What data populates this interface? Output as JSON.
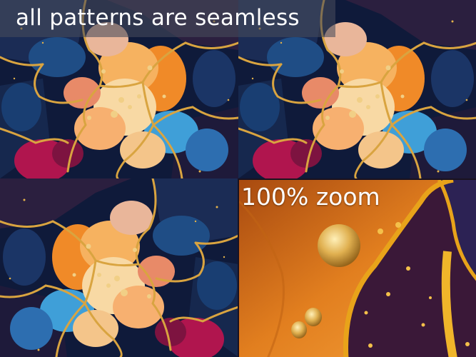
{
  "headline": {
    "text": "all patterns are seamless"
  },
  "zoom_inset": {
    "label": "100% zoom"
  },
  "palette": {
    "navy": "#0e1a3a",
    "deep_blue": "#1c3a6a",
    "sky_blue": "#3f9fd8",
    "orange": "#ef8a22",
    "peach": "#f6caa0",
    "cream": "#f8e6c4",
    "magenta": "#b0154e",
    "plum": "#3a1f3a",
    "gold": "#d9a440"
  }
}
